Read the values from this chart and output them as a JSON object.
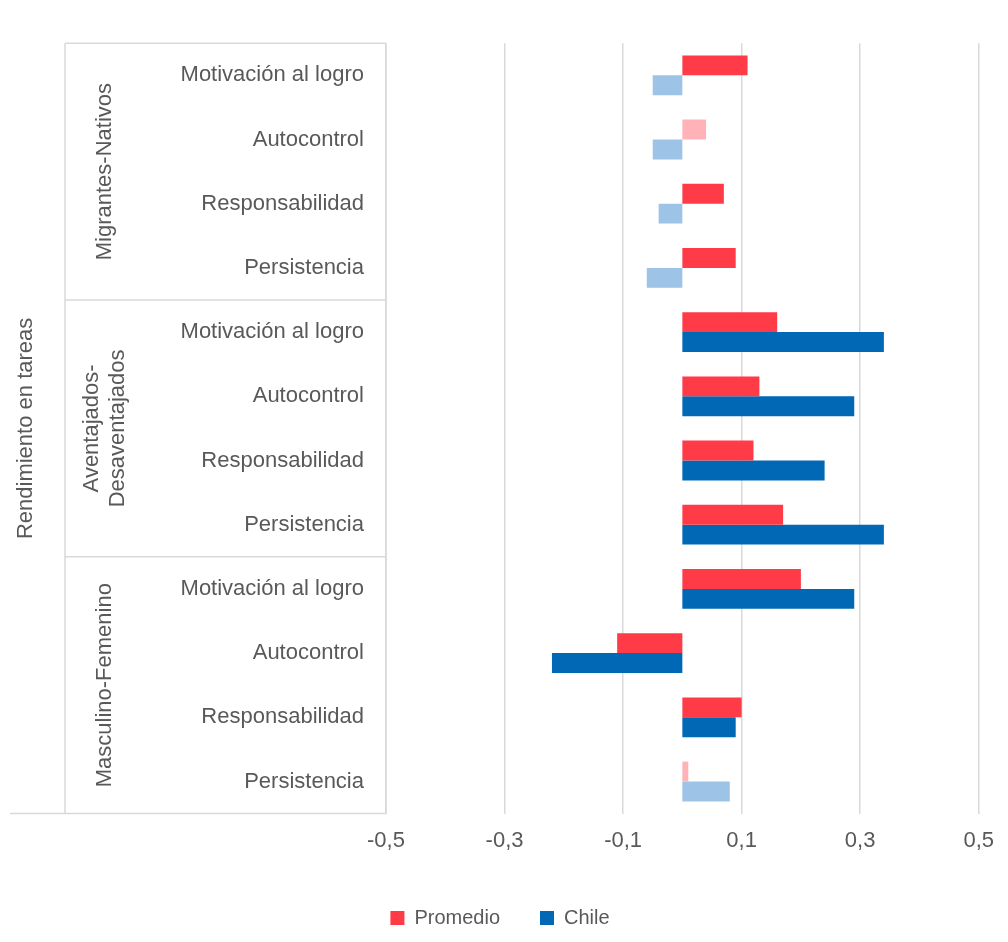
{
  "chart_data": {
    "type": "bar",
    "orientation": "horizontal",
    "annotations": [
      "Rendimiento en tareas",
      "Migrantes-Nativos",
      "Aventajados-Desaventajados",
      "Masculino-Femenino"
    ],
    "categories": [
      "Motivación al logro",
      "Autocontrol",
      "Responsabilidad",
      "Persistencia",
      "Motivación al logro",
      "Autocontrol",
      "Responsabilidad",
      "Persistencia",
      "Motivación al logro",
      "Autocontrol",
      "Responsabilidad",
      "Persistencia"
    ],
    "series": [
      {
        "name": "Promedio",
        "color": "#ff3b47",
        "colors": [
          "#ff3b47",
          "#ffb3b8",
          "#ff3b47",
          "#ff3b47",
          "#ff3b47",
          "#ff3b47",
          "#ff3b47",
          "#ff3b47",
          "#ff3b47",
          "#ff3b47",
          "#ff3b47",
          "#ffb3b8"
        ],
        "values": [
          0.11,
          0.04,
          0.07,
          0.09,
          0.16,
          0.13,
          0.12,
          0.17,
          0.2,
          -0.11,
          0.1,
          0.01
        ]
      },
      {
        "name": "Chile",
        "color": "#0068b5",
        "colors": [
          "#9dc3e6",
          "#9dc3e6",
          "#9dc3e6",
          "#9dc3e6",
          "#0068b5",
          "#0068b5",
          "#0068b5",
          "#0068b5",
          "#0068b5",
          "#0068b5",
          "#0068b5",
          "#9dc3e6"
        ],
        "values": [
          -0.05,
          -0.05,
          -0.04,
          -0.06,
          0.34,
          0.29,
          0.24,
          0.34,
          0.29,
          -0.22,
          0.09,
          0.08
        ]
      }
    ],
    "xlim": [
      -0.5,
      0.5
    ],
    "xticks": [
      {
        "value": -0.5,
        "label": "-0,5"
      },
      {
        "value": -0.3,
        "label": "-0,3"
      },
      {
        "value": -0.1,
        "label": "-0,1"
      },
      {
        "value": 0.1,
        "label": "0,1"
      },
      {
        "value": 0.3,
        "label": "0,3"
      },
      {
        "value": 0.5,
        "label": "0,5"
      }
    ],
    "grid": "x",
    "legend": "bottom"
  }
}
